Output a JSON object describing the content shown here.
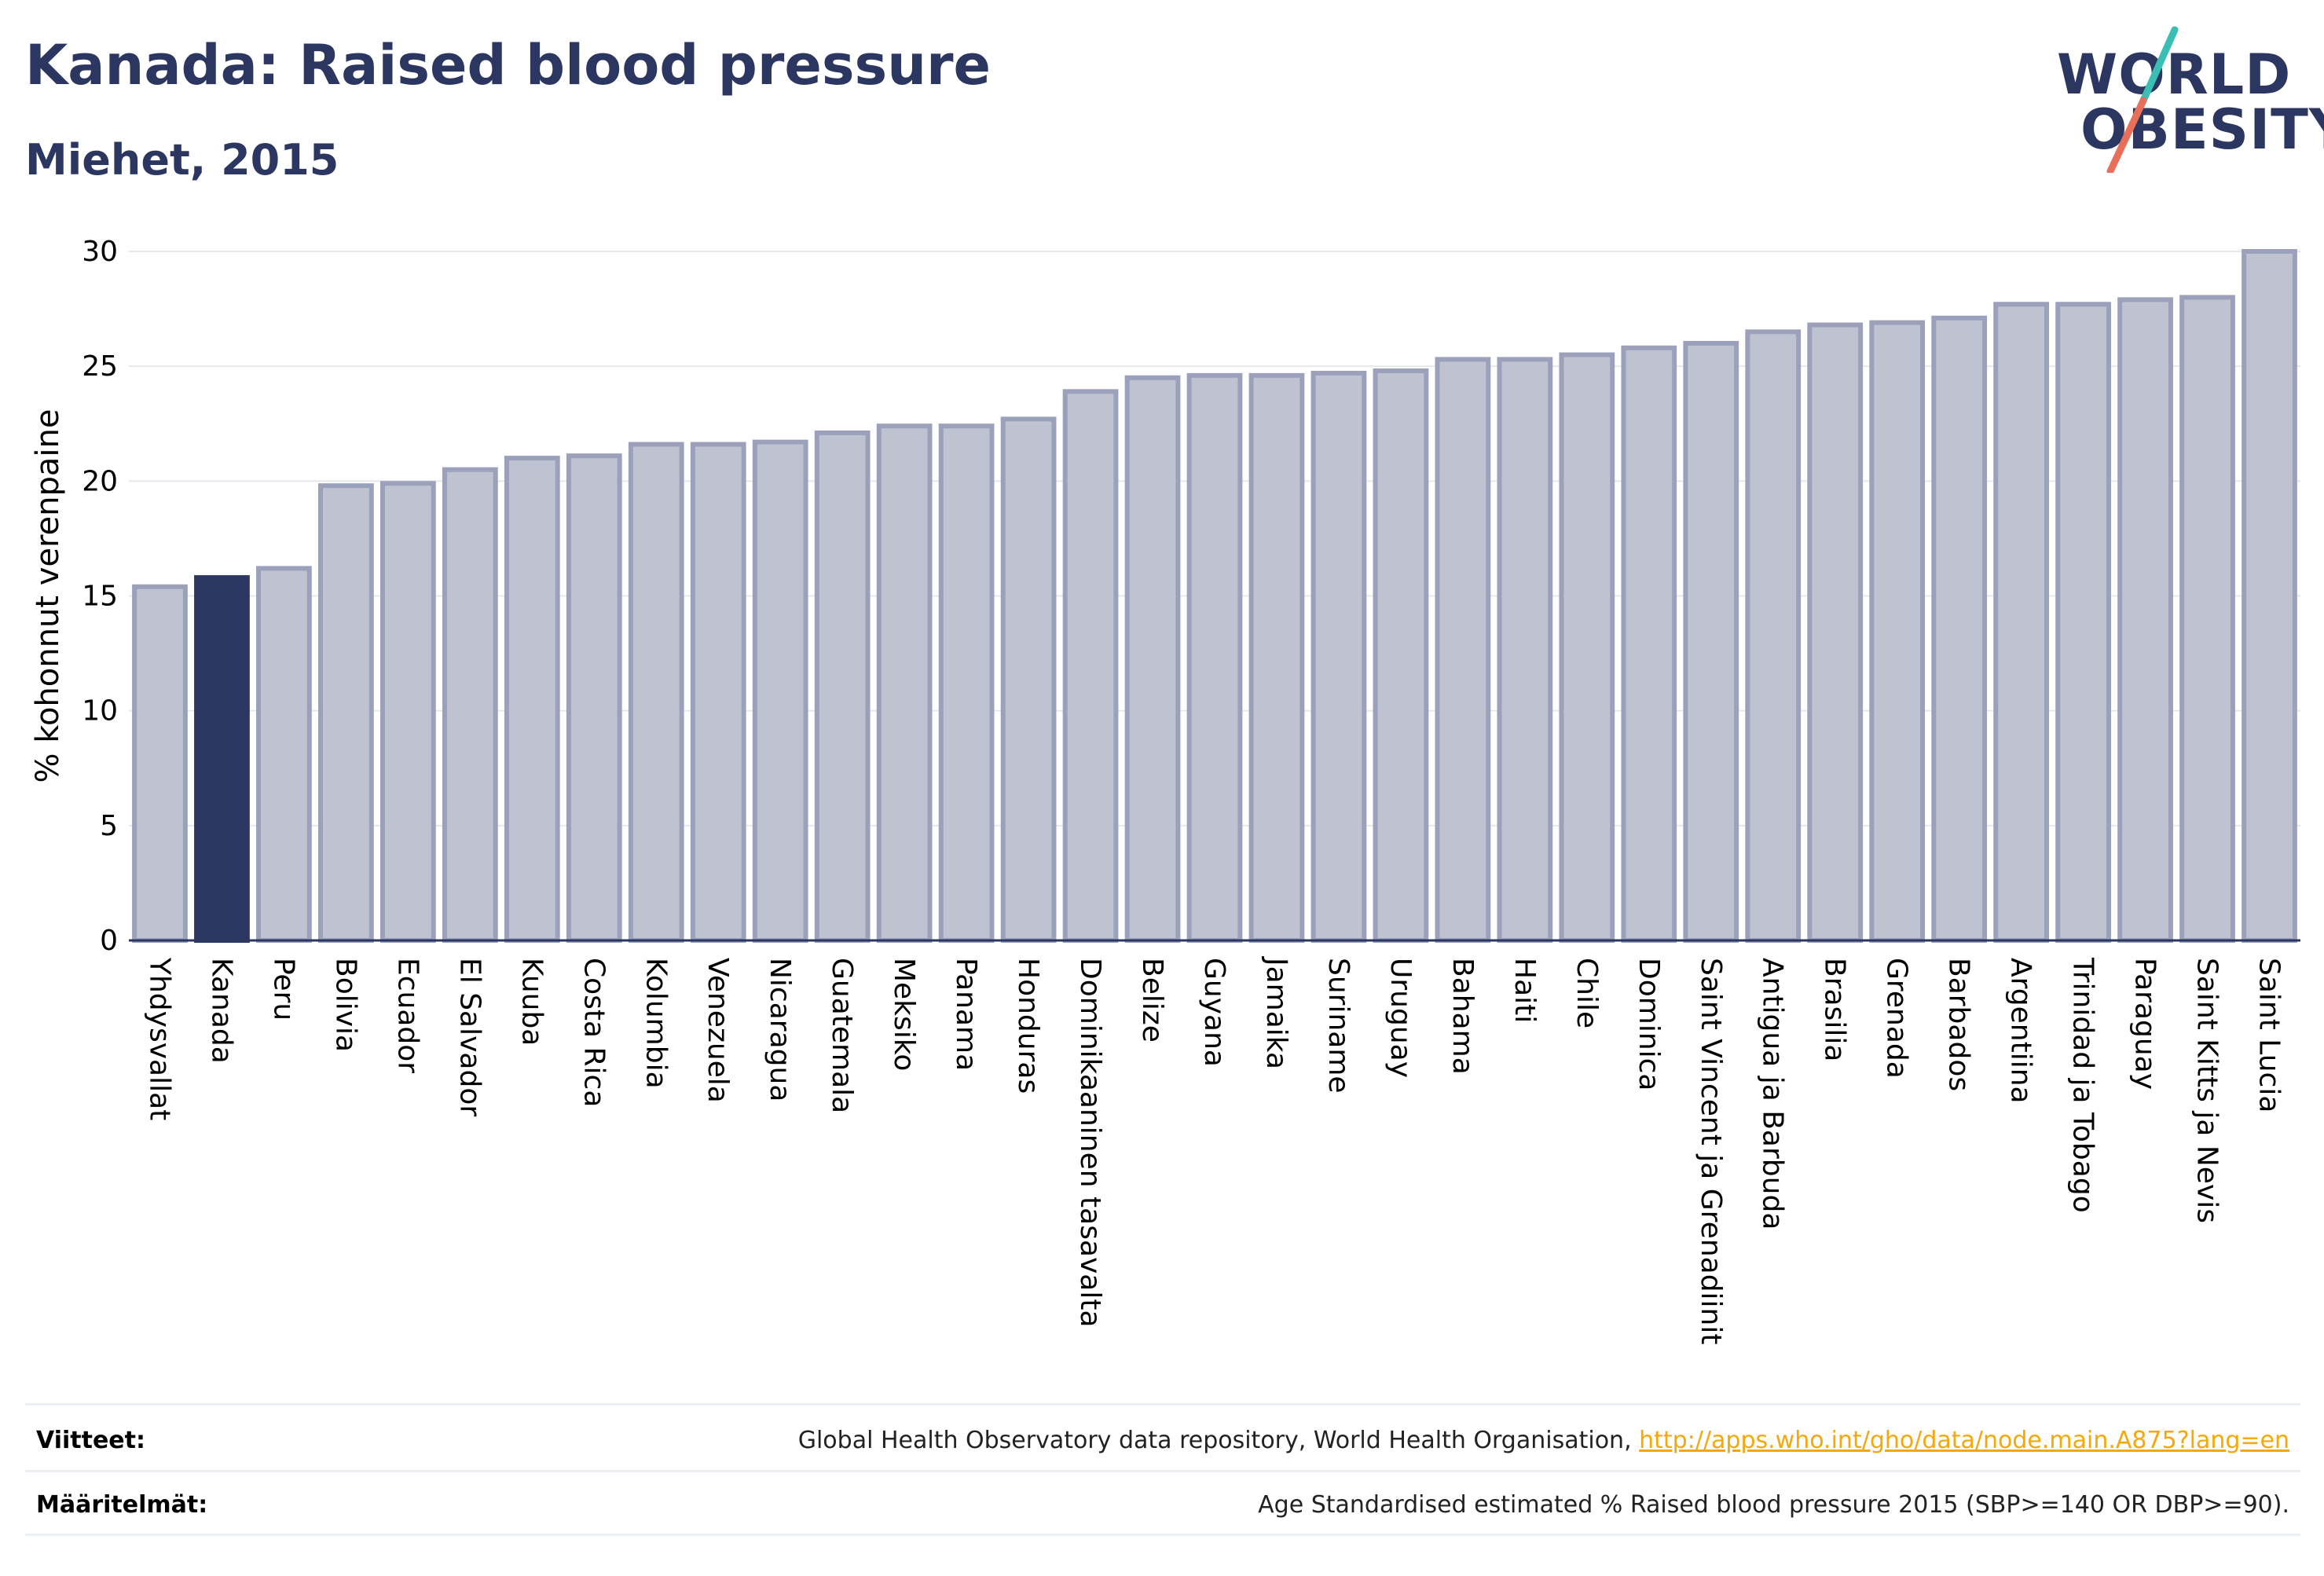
{
  "header": {
    "title": "Kanada: Raised blood pressure",
    "subtitle": "Miehet, 2015"
  },
  "logo": {
    "line1": "WORLD",
    "line2": "OBESITY"
  },
  "chart_data": {
    "type": "bar",
    "ylabel": "% kohonnut verenpaine",
    "ylim": [
      0,
      30
    ],
    "yticks": [
      0,
      5,
      10,
      15,
      20,
      25,
      30
    ],
    "grid": true,
    "highlight": "Kanada",
    "categories": [
      "Yhdysvallat",
      "Kanada",
      "Peru",
      "Bolivia",
      "Ecuador",
      "El Salvador",
      "Kuuba",
      "Costa Rica",
      "Kolumbia",
      "Venezuela",
      "Nicaragua",
      "Guatemala",
      "Meksiko",
      "Panama",
      "Honduras",
      "Dominikaaninen tasavalta",
      "Belize",
      "Guyana",
      "Jamaika",
      "Suriname",
      "Uruguay",
      "Bahama",
      "Haiti",
      "Chile",
      "Dominica",
      "Saint Vincent ja Grenadiinit",
      "Antigua ja Barbuda",
      "Brasilia",
      "Grenada",
      "Barbados",
      "Argentiina",
      "Trinidad ja Tobago",
      "Paraguay",
      "Saint Kitts ja Nevis",
      "Saint Lucia"
    ],
    "values": [
      15.4,
      15.8,
      16.2,
      19.8,
      19.9,
      20.5,
      21.0,
      21.1,
      21.6,
      21.6,
      21.7,
      22.1,
      22.4,
      22.4,
      22.7,
      23.9,
      24.5,
      24.6,
      24.6,
      24.7,
      24.8,
      25.3,
      25.3,
      25.5,
      25.8,
      26.0,
      26.5,
      26.8,
      26.9,
      27.1,
      27.7,
      27.7,
      27.9,
      28.0,
      30.0
    ]
  },
  "colors": {
    "bar": "#bfc3d1",
    "bar_border": "#9ba1bb",
    "highlight": "#2b3661",
    "logo_teal": "#3bbfb4",
    "logo_coral": "#e8705a"
  },
  "footer": {
    "sources_label": "Viitteet:",
    "sources_text": "Global Health Observatory data repository, World Health Organisation, ",
    "sources_link": "http://apps.who.int/gho/data/node.main.A875?lang=en",
    "definitions_label": "Määritelmät:",
    "definitions_text": "Age Standardised estimated % Raised blood pressure 2015 (SBP>=140 OR DBP>=90)."
  }
}
